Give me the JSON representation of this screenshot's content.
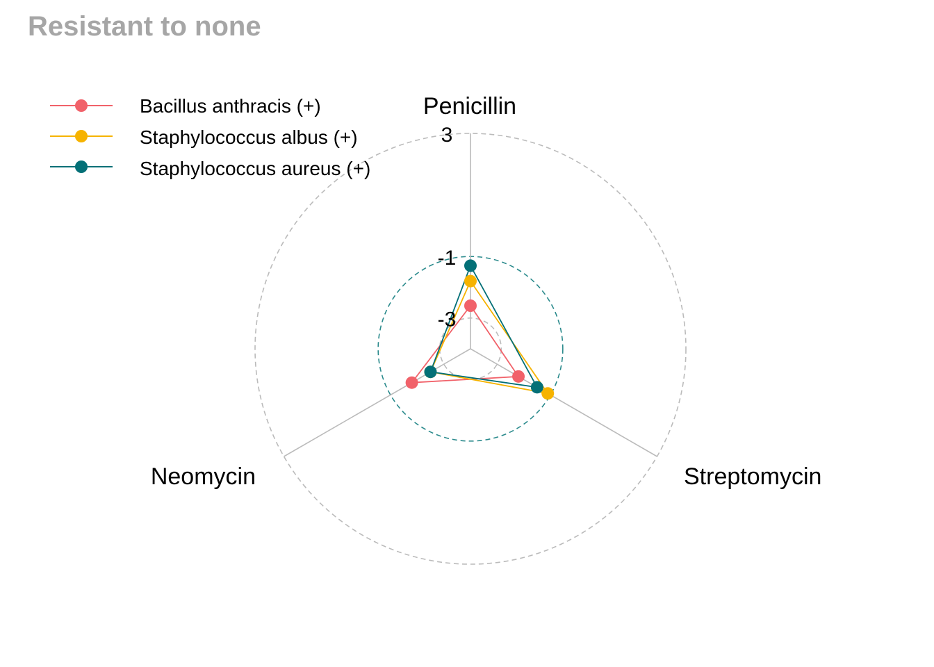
{
  "chart_data": {
    "type": "radar",
    "title": "Resistant to none",
    "axes": [
      "Penicillin",
      "Streptomycin",
      "Neomycin"
    ],
    "grid": {
      "rings": [
        -3,
        -1,
        3
      ],
      "ring_labels": [
        "-3",
        "-1",
        "3"
      ],
      "highlight_ring": -1,
      "highlight_color": "#2a8a8c",
      "grid_color": "#bbbbbb",
      "range": [
        -4,
        3
      ]
    },
    "legend_position": "top-left",
    "series": [
      {
        "name": "Bacillus anthracis (+)",
        "color": "#f1626a",
        "values": [
          -2.6,
          -2.2,
          -1.8
        ]
      },
      {
        "name": "Staphylococcus albus (+)",
        "color": "#f6b300",
        "values": [
          -1.8,
          -1.1,
          -2.5
        ]
      },
      {
        "name": "Staphylococcus aureus (+)",
        "color": "#047077",
        "values": [
          -1.3,
          -1.5,
          -2.5
        ]
      }
    ]
  }
}
